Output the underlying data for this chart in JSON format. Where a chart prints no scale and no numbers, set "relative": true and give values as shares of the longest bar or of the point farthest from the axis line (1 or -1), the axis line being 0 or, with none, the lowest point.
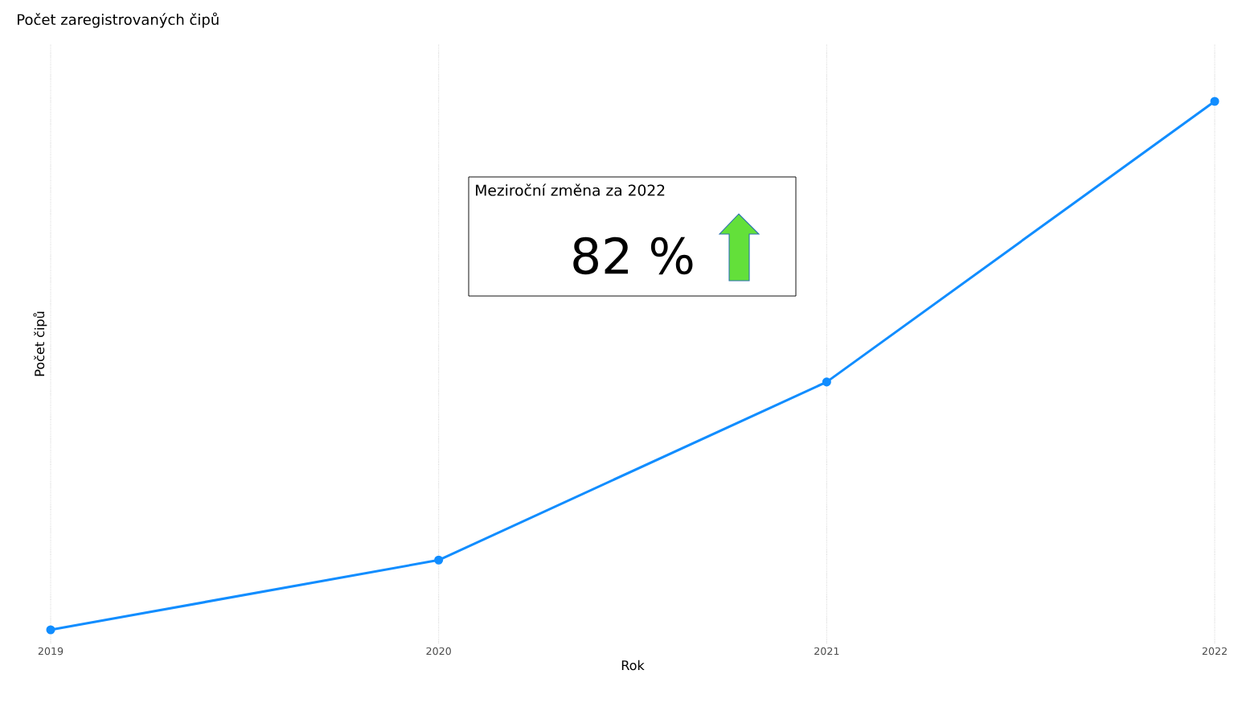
{
  "chart_data": {
    "type": "line",
    "title": "Počet zaregistrovaných čipů",
    "xlabel": "Rok",
    "ylabel": "Počet čipů",
    "categories": [
      "2019",
      "2020",
      "2021",
      "2022"
    ],
    "series": [
      {
        "color": "#118dff",
        "values": [
          0,
          0.132,
          0.469,
          1
        ]
      }
    ],
    "relative": true,
    "grid": "x",
    "marker": "circle",
    "annotations": [
      "Meziroční změna za 2022",
      "82 %"
    ]
  }
}
